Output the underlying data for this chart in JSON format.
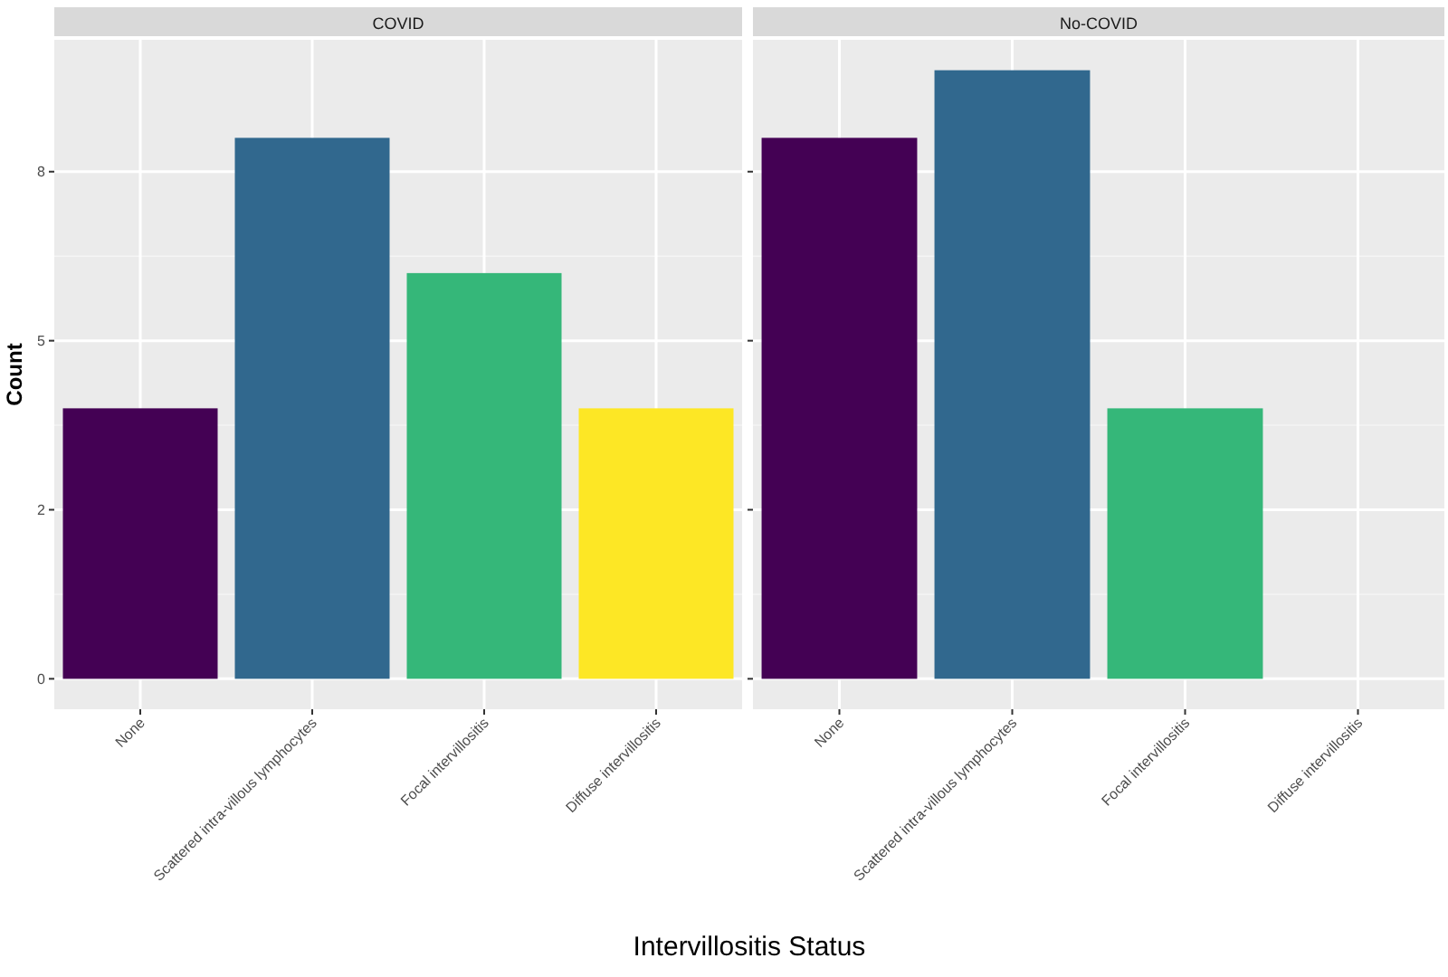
{
  "chart_data": [
    {
      "type": "bar",
      "title": "COVID",
      "xlabel": "Intervillositis Status",
      "ylabel": "Count",
      "categories": [
        "None",
        "Scattered intra-villous lymphocytes",
        "Focal intervillositis",
        "Diffuse intervillositis"
      ],
      "values": [
        4,
        8,
        6,
        4
      ],
      "colors": [
        "#440154",
        "#31688e",
        "#35b779",
        "#fde725"
      ],
      "ylim": [
        -0.45,
        9.45
      ],
      "yticks": [
        0,
        {
          "value": 2.5,
          "label": "2"
        },
        5,
        {
          "value": 7.5,
          "label": "8"
        }
      ],
      "grid": true
    },
    {
      "type": "bar",
      "title": "No-COVID",
      "categories": [
        "None",
        "Scattered intra-villous lymphocytes",
        "Focal intervillositis",
        "Diffuse intervillositis"
      ],
      "values": [
        8,
        9,
        4,
        0
      ],
      "colors": [
        "#440154",
        "#31688e",
        "#35b779",
        "#fde725"
      ],
      "ylim": [
        -0.45,
        9.45
      ],
      "yticks": [
        {
          "value": 0,
          "label": null
        },
        {
          "value": 2.5,
          "label": null
        },
        {
          "value": 5,
          "label": null
        },
        {
          "value": 7.5,
          "label": null
        }
      ],
      "grid": true,
      "tick_labels": "x"
    }
  ]
}
